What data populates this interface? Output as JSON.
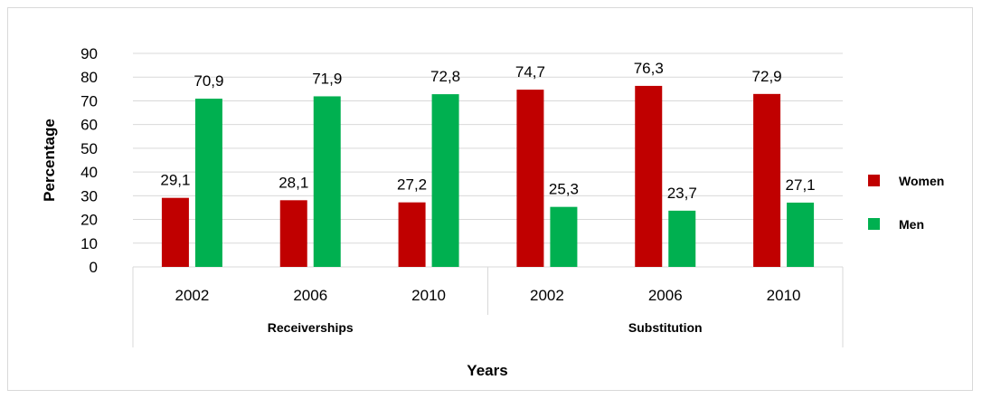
{
  "chart_data": {
    "type": "bar",
    "ylabel": "Percentage",
    "xlabel": "Years",
    "ylim": [
      0,
      90
    ],
    "yticks": [
      0,
      10,
      20,
      30,
      40,
      50,
      60,
      70,
      80,
      90
    ],
    "grid": true,
    "legend_position": "right",
    "groups": [
      {
        "name": "Receiverships",
        "categories": [
          "2002",
          "2006",
          "2010"
        ]
      },
      {
        "name": "Substitution",
        "categories": [
          "2002",
          "2006",
          "2010"
        ]
      }
    ],
    "series": [
      {
        "name": "Women",
        "color": "#c00000",
        "values": [
          29.1,
          28.1,
          27.2,
          74.7,
          76.3,
          72.9
        ],
        "labels": [
          "29,1",
          "28,1",
          "27,2",
          "74,7",
          "76,3",
          "72,9"
        ]
      },
      {
        "name": "Men",
        "color": "#00b050",
        "values": [
          70.9,
          71.9,
          72.8,
          25.3,
          23.7,
          27.1
        ],
        "labels": [
          "70,9",
          "71,9",
          "72,8",
          "25,3",
          "23,7",
          "27,1"
        ]
      }
    ]
  }
}
